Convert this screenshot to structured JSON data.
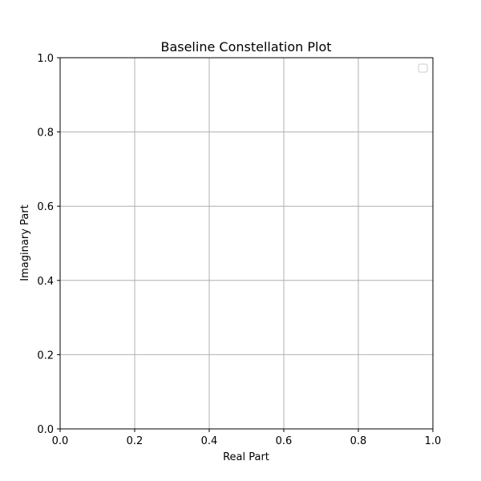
{
  "chart_data": {
    "type": "scatter",
    "title": "Baseline Constellation Plot",
    "xlabel": "Real Part",
    "ylabel": "Imaginary Part",
    "xlim": [
      0.0,
      1.0
    ],
    "ylim": [
      0.0,
      1.0
    ],
    "x_ticks": [
      "0.0",
      "0.2",
      "0.4",
      "0.6",
      "0.8",
      "1.0"
    ],
    "y_ticks": [
      "0.0",
      "0.2",
      "0.4",
      "0.6",
      "0.8",
      "1.0"
    ],
    "grid": true,
    "legend": {
      "placement": "top-right",
      "entries": []
    },
    "series": [],
    "colors": {
      "grid": "#b0b0b0",
      "axes": "#000000",
      "legend_border": "#cccccc"
    }
  }
}
